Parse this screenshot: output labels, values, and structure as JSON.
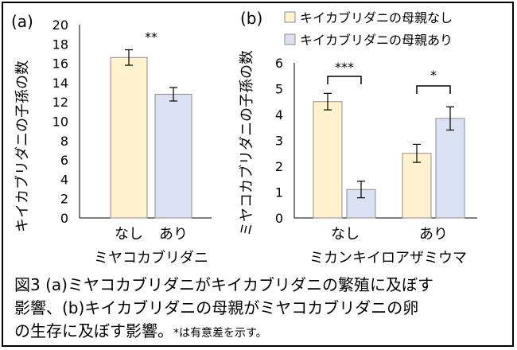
{
  "figure": {
    "caption_line1": "図3 (a)ミヤコカブリダニがキイカブリダニの繁殖に及ぼす",
    "caption_line2": "影響、(b)キイカブリダニの母親がミヤコカブリダニの卵",
    "caption_line3": "の生存に及ぼす影響。",
    "caption_note": "*は有意差を示す。"
  },
  "colors": {
    "yellow": "#FFF2CC",
    "blue": "#D9E1F2",
    "border": "#8C8C8C"
  },
  "chart_data": [
    {
      "type": "bar",
      "panel_label": "(a)",
      "ylabel": "キイカブリダニの子孫の数",
      "xlabel": "ミヤコカブリダニ",
      "ylim": [
        0,
        20
      ],
      "yticks": [
        "0",
        "2",
        "4",
        "6",
        "8",
        "10",
        "12",
        "14",
        "16",
        "18",
        "20"
      ],
      "categories": [
        "なし",
        "あり"
      ],
      "values": [
        16.6,
        12.8
      ],
      "errors": [
        0.8,
        0.7
      ],
      "bar_colors": [
        "#FFF2CC",
        "#D9E1F2"
      ],
      "significance": "**"
    },
    {
      "type": "bar",
      "panel_label": "(b)",
      "ylabel": "ミヤコカブリダニの子孫の数",
      "xlabel": "ミカンキイロアザミウマ",
      "ylim": [
        0,
        6
      ],
      "yticks": [
        "0",
        "1",
        "2",
        "3",
        "4",
        "5",
        "6"
      ],
      "categories": [
        "なし",
        "あり"
      ],
      "series": [
        {
          "name": "キイカブリダニの母親なし",
          "color": "#FFF2CC",
          "values": [
            4.5,
            2.5
          ],
          "errors": [
            0.32,
            0.35
          ]
        },
        {
          "name": "キイカブリダニの母親あり",
          "color": "#D9E1F2",
          "values": [
            1.1,
            3.85
          ],
          "errors": [
            0.32,
            0.45
          ]
        }
      ],
      "significance": [
        "***",
        "*"
      ]
    }
  ]
}
